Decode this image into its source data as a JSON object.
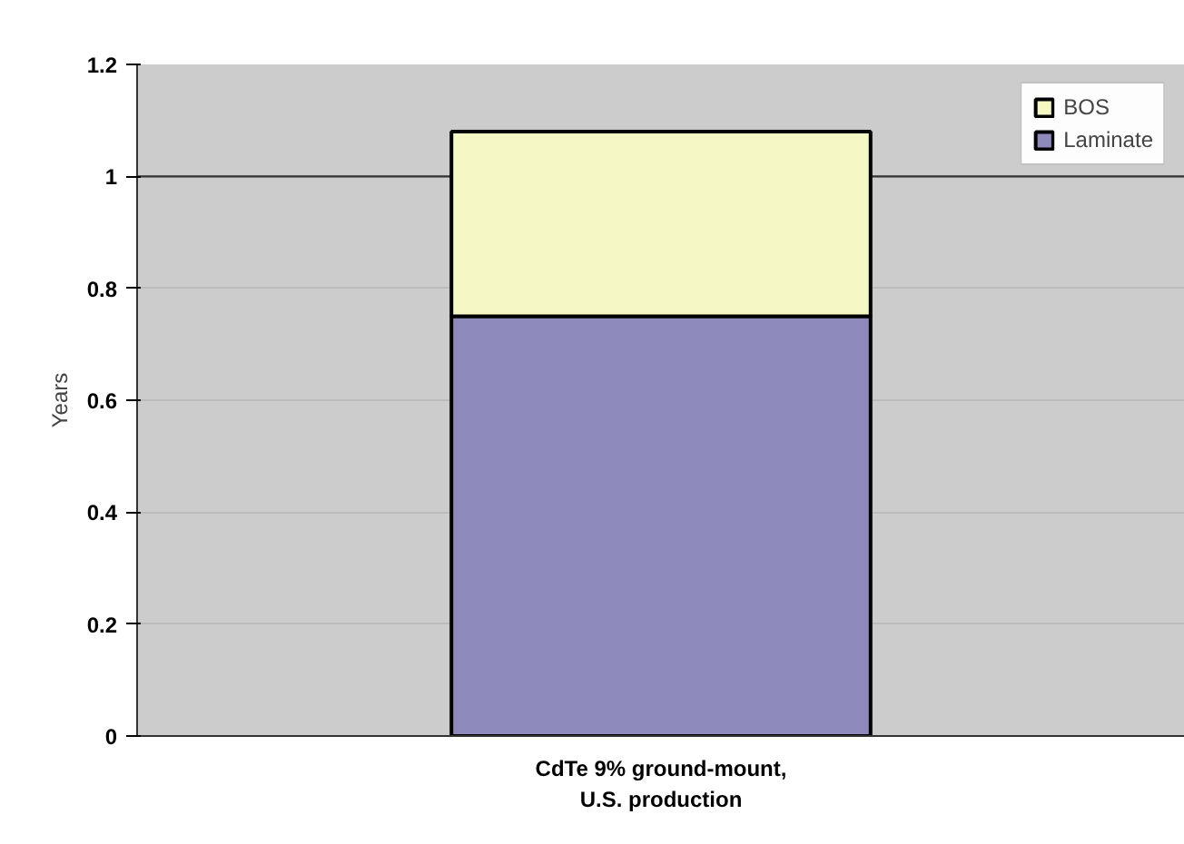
{
  "chart_data": {
    "type": "bar",
    "stacked": true,
    "ylabel": "Years",
    "categories": [
      "CdTe 9% ground-mount,\nU.S. production"
    ],
    "series": [
      {
        "name": "Laminate",
        "color": "#8e8abb",
        "values": [
          0.75
        ]
      },
      {
        "name": "BOS",
        "color": "#f5f7c4",
        "values": [
          0.33
        ]
      }
    ],
    "ylim": [
      0,
      1.2
    ],
    "yticks": [
      0,
      0.2,
      0.4,
      0.6,
      0.8,
      1,
      1.2
    ],
    "grid": "y",
    "legend": "top right",
    "ref_lines": [
      {
        "axis": "y",
        "value": 1,
        "color": "#333333"
      }
    ]
  }
}
